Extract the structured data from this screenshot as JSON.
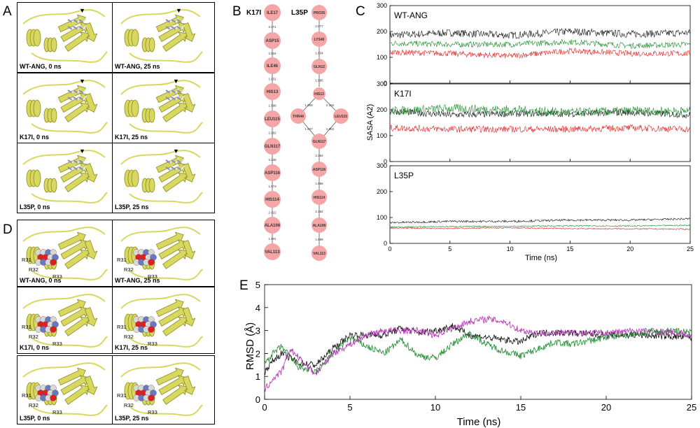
{
  "panel_letters": {
    "a": "A",
    "b": "B",
    "c": "C",
    "d": "D",
    "e": "E"
  },
  "panelA": {
    "captions": [
      "WT-ANG, 0 ns",
      "WT-ANG, 25 ns",
      "K17I, 0 ns",
      "K17I, 25 ns",
      "L35P, 0 ns",
      "L35P, 25 ns"
    ],
    "marker": "▼"
  },
  "panelD": {
    "captions": [
      "WT-ANG, 0 ns",
      "WT-ANG, 25 ns",
      "K17I, 0 ns",
      "K17I, 25 ns",
      "L35P, 0 ns",
      "L35P, 25 ns"
    ],
    "residue_labels": [
      "R31",
      "R32",
      "R33"
    ]
  },
  "panelB": {
    "k17i": {
      "title": "K17I",
      "nodes": [
        "ILE17",
        "ASP15",
        "ILE46",
        "HIS13",
        "LEU115",
        "GLN117",
        "ASP116",
        "HIS114",
        "ALA106",
        "VAL113"
      ],
      "edges": [
        "2.371",
        "2.004",
        "1.931",
        "1.996",
        "2.262",
        "2.336",
        "1.873",
        "2.422",
        "1.901"
      ]
    },
    "l35p": {
      "title": "L35P",
      "top_nodes": [
        "PRO35",
        "LYS40",
        "GLN12",
        "HIS13"
      ],
      "top_edges": [
        "2.077",
        "1.834",
        "1.995"
      ],
      "branch_nodes": [
        "THR44",
        "LEU115"
      ],
      "branch_edges": [
        "1.905",
        "2.182",
        "1.937",
        "1.952"
      ],
      "bottom_nodes": [
        "GLN117",
        "ASP116",
        "HIS114",
        "ALA106",
        "VAL113"
      ],
      "bottom_edges": [
        "2.354",
        "1.886",
        "2.182",
        "1.889"
      ]
    }
  },
  "colors": {
    "black": "#111111",
    "green": "#1a8a2a",
    "red": "#e02020",
    "magenta": "#b030b0",
    "node": "#f4a6a6",
    "ribbon": "#d8d860"
  },
  "chart_data": [
    {
      "type": "line",
      "panel": "C",
      "title": "",
      "xlabel": "Time (ns)",
      "ylabel": "SASA (A2)",
      "xlim": [
        0,
        25
      ],
      "ylim": [
        0,
        300
      ],
      "xticks": [
        "0",
        "5",
        "10",
        "15",
        "20",
        "25"
      ],
      "yticks": [
        "0",
        "100",
        "200",
        "300"
      ],
      "subplots": [
        {
          "label": "WT-ANG",
          "series": [
            {
              "name": "black",
              "mean": [
                185,
                195,
                185,
                200,
                190,
                195
              ],
              "noise": 18
            },
            {
              "name": "green",
              "mean": [
                155,
                150,
                150,
                160,
                145,
                150
              ],
              "noise": 14
            },
            {
              "name": "red",
              "mean": [
                120,
                115,
                105,
                125,
                115,
                115
              ],
              "noise": 14
            }
          ]
        },
        {
          "label": "K17I",
          "series": [
            {
              "name": "black",
              "mean": [
                195,
                180,
                185,
                185,
                190,
                180
              ],
              "noise": 16
            },
            {
              "name": "green",
              "mean": [
                195,
                205,
                200,
                190,
                195,
                195
              ],
              "noise": 22
            },
            {
              "name": "red",
              "mean": [
                130,
                125,
                125,
                125,
                130,
                125
              ],
              "noise": 16
            }
          ]
        },
        {
          "label": "L35P",
          "series": [
            {
              "name": "black",
              "mean": [
                80,
                85,
                85,
                90,
                90,
                95
              ],
              "noise": 5
            },
            {
              "name": "green",
              "mean": [
                63,
                65,
                66,
                68,
                67,
                70
              ],
              "noise": 3
            },
            {
              "name": "red",
              "mean": [
                60,
                58,
                60,
                57,
                56,
                55
              ],
              "noise": 3
            }
          ]
        }
      ]
    },
    {
      "type": "line",
      "panel": "E",
      "title": "",
      "xlabel": "Time (ns)",
      "ylabel": "RMSD (Å)",
      "xlim": [
        0,
        25
      ],
      "ylim": [
        0,
        5
      ],
      "xticks": [
        "0",
        "5",
        "10",
        "15",
        "20",
        "25"
      ],
      "yticks": [
        "0",
        "1",
        "2",
        "3",
        "4",
        "5"
      ],
      "series": [
        {
          "name": "black",
          "points": [
            [
              0,
              1.2
            ],
            [
              0.5,
              1.7
            ],
            [
              1,
              2.0
            ],
            [
              2,
              1.6
            ],
            [
              3,
              1.5
            ],
            [
              4,
              2.2
            ],
            [
              5,
              2.8
            ],
            [
              7,
              2.8
            ],
            [
              8,
              3.1
            ],
            [
              9,
              2.9
            ],
            [
              10,
              3.0
            ],
            [
              11,
              3.2
            ],
            [
              12,
              2.8
            ],
            [
              13,
              2.7
            ],
            [
              14,
              2.6
            ],
            [
              15,
              2.5
            ],
            [
              16,
              2.9
            ],
            [
              18,
              2.9
            ],
            [
              20,
              2.8
            ],
            [
              22,
              2.8
            ],
            [
              25,
              2.7
            ]
          ],
          "noise": 0.15
        },
        {
          "name": "green",
          "points": [
            [
              0,
              1.6
            ],
            [
              0.5,
              2.0
            ],
            [
              1,
              2.3
            ],
            [
              2,
              1.4
            ],
            [
              3,
              1.2
            ],
            [
              4,
              2.0
            ],
            [
              5,
              2.7
            ],
            [
              6,
              2.3
            ],
            [
              7,
              2.0
            ],
            [
              8,
              2.6
            ],
            [
              9,
              1.9
            ],
            [
              10,
              1.8
            ],
            [
              11,
              2.4
            ],
            [
              12,
              2.9
            ],
            [
              13,
              2.4
            ],
            [
              14,
              2.1
            ],
            [
              15,
              1.9
            ],
            [
              16,
              2.2
            ],
            [
              17,
              2.5
            ],
            [
              18,
              2.4
            ],
            [
              20,
              2.7
            ],
            [
              22,
              2.9
            ],
            [
              24,
              3.0
            ],
            [
              25,
              2.9
            ]
          ],
          "noise": 0.15
        },
        {
          "name": "magenta",
          "points": [
            [
              0,
              0.4
            ],
            [
              0.5,
              0.9
            ],
            [
              1,
              1.2
            ],
            [
              1.5,
              2.2
            ],
            [
              2,
              1.8
            ],
            [
              3,
              1.1
            ],
            [
              4,
              2.0
            ],
            [
              5,
              2.4
            ],
            [
              6,
              2.8
            ],
            [
              7,
              3.0
            ],
            [
              9,
              3.0
            ],
            [
              10,
              2.8
            ],
            [
              11,
              3.1
            ],
            [
              12,
              3.4
            ],
            [
              13,
              3.5
            ],
            [
              14,
              3.4
            ],
            [
              15,
              3.0
            ],
            [
              16,
              2.9
            ],
            [
              18,
              2.9
            ],
            [
              20,
              2.9
            ],
            [
              22,
              3.0
            ],
            [
              24,
              2.9
            ],
            [
              25,
              2.8
            ]
          ],
          "noise": 0.15
        }
      ]
    }
  ]
}
